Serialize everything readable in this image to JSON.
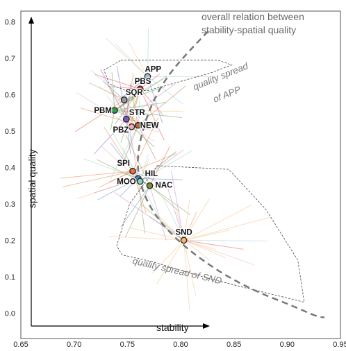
{
  "chart_data": {
    "type": "scatter",
    "xlabel": "stability",
    "ylabel": "spatial quality",
    "xlim": [
      0.65,
      0.95
    ],
    "ylim": [
      -0.07,
      0.83
    ],
    "x_ticks": [
      "0.65",
      "0.70",
      "0.75",
      "0.80",
      "0.85",
      "0.90",
      "0.95"
    ],
    "y_ticks": [
      "0.0",
      "0.1",
      "0.2",
      "0.3",
      "0.4",
      "0.5",
      "0.6",
      "0.7",
      "0.8"
    ],
    "grid": false,
    "points": [
      {
        "name": "APP",
        "x": 0.769,
        "y": 0.65,
        "color": "#9fc3e0"
      },
      {
        "name": "PBS",
        "x": 0.762,
        "y": 0.616,
        "color": "#e53d2f"
      },
      {
        "name": "SQR",
        "x": 0.747,
        "y": 0.586,
        "color": "#9a9a9a"
      },
      {
        "name": "PBM",
        "x": 0.738,
        "y": 0.557,
        "color": "#2f9e44"
      },
      {
        "name": "STR",
        "x": 0.749,
        "y": 0.533,
        "color": "#7e57c2"
      },
      {
        "name": "NEW",
        "x": 0.76,
        "y": 0.516,
        "color": "#b5653f"
      },
      {
        "name": "PBZ",
        "x": 0.754,
        "y": 0.512,
        "color": "#f0a8b0"
      },
      {
        "name": "SPI",
        "x": 0.755,
        "y": 0.39,
        "color": "#f07030"
      },
      {
        "name": "HIL",
        "x": 0.76,
        "y": 0.37,
        "color": "#4a7fb8"
      },
      {
        "name": "MOO",
        "x": 0.762,
        "y": 0.362,
        "color": "#8fd3c2"
      },
      {
        "name": "NAC",
        "x": 0.771,
        "y": 0.35,
        "color": "#7d8f3a"
      },
      {
        "name": "SND",
        "x": 0.803,
        "y": 0.2,
        "color": "#f6b66f"
      }
    ],
    "annotations": {
      "trend": "overall relation between stability-spatial quality",
      "app_spread": "quality spread of APP",
      "snd_spread": "quality spread of SND"
    }
  },
  "labels": {
    "trend_line1": "overall relation between",
    "trend_line2": "stability-spatial quality",
    "app_line1": "quality spread",
    "app_line2": "of APP",
    "snd_label": "quality spread of SND"
  }
}
